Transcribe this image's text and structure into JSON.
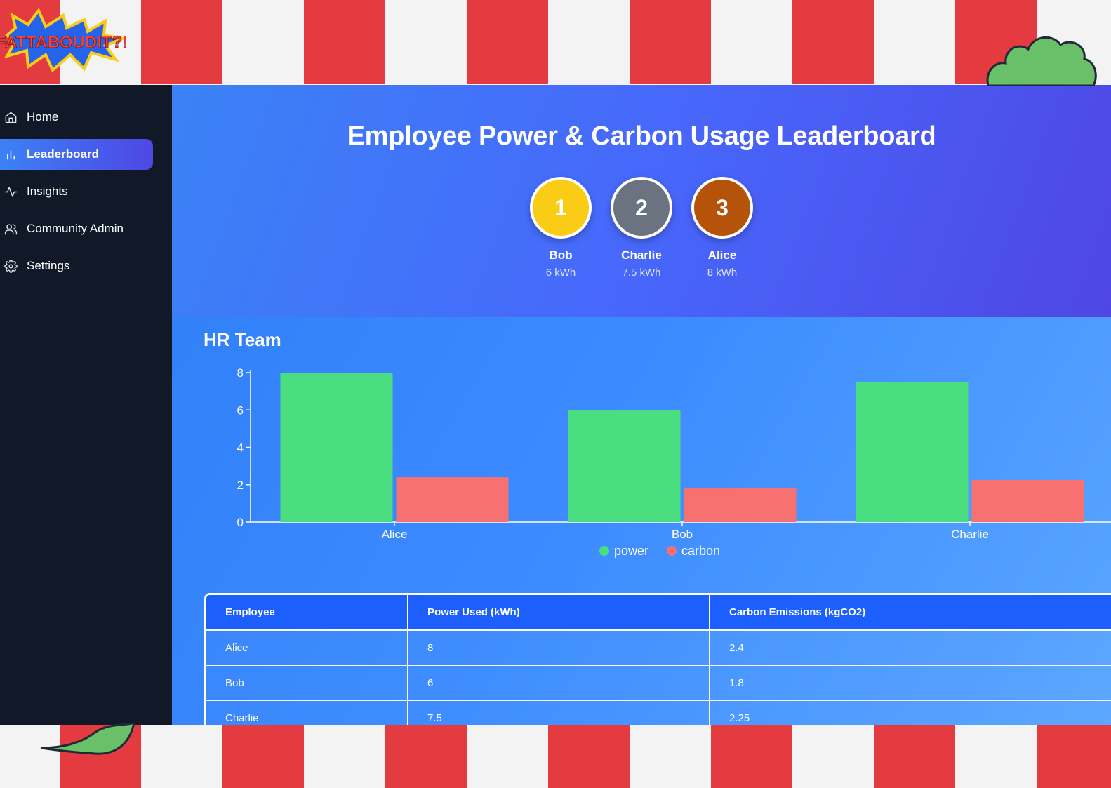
{
  "branding": {
    "logo_text": "FATTABOUDIT?!"
  },
  "sidebar": {
    "items": [
      {
        "label": "Home",
        "icon": "home-icon",
        "active": false
      },
      {
        "label": "Leaderboard",
        "icon": "bar-chart-icon",
        "active": true
      },
      {
        "label": "Insights",
        "icon": "activity-icon",
        "active": false
      },
      {
        "label": "Community Admin",
        "icon": "users-icon",
        "active": false
      },
      {
        "label": "Settings",
        "icon": "gear-icon",
        "active": false
      }
    ]
  },
  "header": {
    "title": "Employee Power & Carbon Usage Leaderboard",
    "podium": [
      {
        "rank": "1",
        "name": "Bob",
        "value": "6 kWh",
        "color": "#facc15"
      },
      {
        "rank": "2",
        "name": "Charlie",
        "value": "7.5 kWh",
        "color": "#6b7280"
      },
      {
        "rank": "3",
        "name": "Alice",
        "value": "8 kWh",
        "color": "#b45309"
      }
    ]
  },
  "team": {
    "title": "HR Team"
  },
  "chart_data": {
    "type": "bar",
    "categories": [
      "Alice",
      "Bob",
      "Charlie"
    ],
    "series": [
      {
        "name": "power",
        "values": [
          8,
          6,
          7.5
        ],
        "color": "#4ade80"
      },
      {
        "name": "carbon",
        "values": [
          2.4,
          1.8,
          2.25
        ],
        "color": "#f87171"
      }
    ],
    "yticks": [
      "0",
      "2",
      "4",
      "6",
      "8"
    ],
    "ylim": [
      0,
      8
    ],
    "legend": "bottom-center"
  },
  "table": {
    "headers": [
      "Employee",
      "Power Used (kWh)",
      "Carbon Emissions (kgCO2)"
    ],
    "rows": [
      [
        "Alice",
        "8",
        "2.4"
      ],
      [
        "Bob",
        "6",
        "1.8"
      ],
      [
        "Charlie",
        "7.5",
        "2.25"
      ]
    ]
  },
  "colors": {
    "stripe_red": "#e33b40",
    "stripe_white": "#f3f3f3",
    "sidebar_bg": "#111827"
  }
}
